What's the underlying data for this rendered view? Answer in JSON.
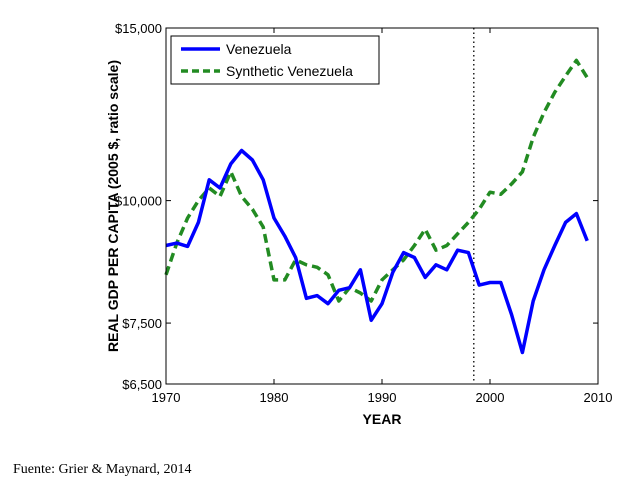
{
  "chart_data": {
    "type": "line",
    "xlabel": "YEAR",
    "ylabel": "REAL GDP PER CAPITA (2005 $, ratio scale)",
    "xlim": [
      1970,
      2010
    ],
    "ylim": [
      6500,
      15000
    ],
    "yscale": "log",
    "xticks": [
      1970,
      1980,
      1990,
      2000,
      2010
    ],
    "xtick_labels": [
      "1970",
      "1980",
      "1990",
      "2000",
      "2010"
    ],
    "yticks": [
      6500,
      7500,
      10000,
      15000
    ],
    "ytick_labels": [
      "$6,500",
      "$7,500",
      "$10,000",
      "$15,000"
    ],
    "vline_x": 1998.5,
    "legend_position": "top-left",
    "series": [
      {
        "name": "Venezuela",
        "color": "#0000ff",
        "style": "solid",
        "x": [
          1970,
          1971,
          1972,
          1973,
          1974,
          1975,
          1976,
          1977,
          1978,
          1979,
          1980,
          1981,
          1982,
          1983,
          1984,
          1985,
          1986,
          1987,
          1988,
          1989,
          1990,
          1991,
          1992,
          1993,
          1994,
          1995,
          1996,
          1997,
          1998,
          1999,
          2000,
          2001,
          2002,
          2003,
          2004,
          2005,
          2006,
          2007,
          2008,
          2009
        ],
        "values": [
          9000,
          9050,
          8980,
          9500,
          10500,
          10300,
          10900,
          11250,
          11000,
          10500,
          9600,
          9200,
          8750,
          7950,
          8000,
          7850,
          8100,
          8150,
          8500,
          7550,
          7850,
          8450,
          8850,
          8750,
          8350,
          8600,
          8500,
          8900,
          8850,
          8200,
          8250,
          8250,
          7650,
          7000,
          7900,
          8500,
          9000,
          9500,
          9700,
          9100
        ]
      },
      {
        "name": "Synthetic Venezuela",
        "color": "#228b22",
        "style": "dashed",
        "x": [
          1970,
          1971,
          1972,
          1973,
          1974,
          1975,
          1976,
          1977,
          1978,
          1979,
          1980,
          1981,
          1982,
          1983,
          1984,
          1985,
          1986,
          1987,
          1988,
          1989,
          1990,
          1991,
          1992,
          1993,
          1994,
          1995,
          1996,
          1997,
          1998,
          1999,
          2000,
          2001,
          2002,
          2003,
          2004,
          2005,
          2006,
          2007,
          2008,
          2009
        ],
        "values": [
          8400,
          9050,
          9600,
          10000,
          10300,
          10100,
          10700,
          10100,
          9800,
          9400,
          8300,
          8300,
          8700,
          8600,
          8550,
          8400,
          7900,
          8150,
          8050,
          7900,
          8300,
          8500,
          8700,
          9000,
          9350,
          8900,
          9000,
          9250,
          9500,
          9800,
          10200,
          10150,
          10400,
          10700,
          11600,
          12300,
          12900,
          13400,
          13900,
          13350
        ]
      }
    ]
  },
  "source": "Fuente: Grier & Maynard, 2014"
}
